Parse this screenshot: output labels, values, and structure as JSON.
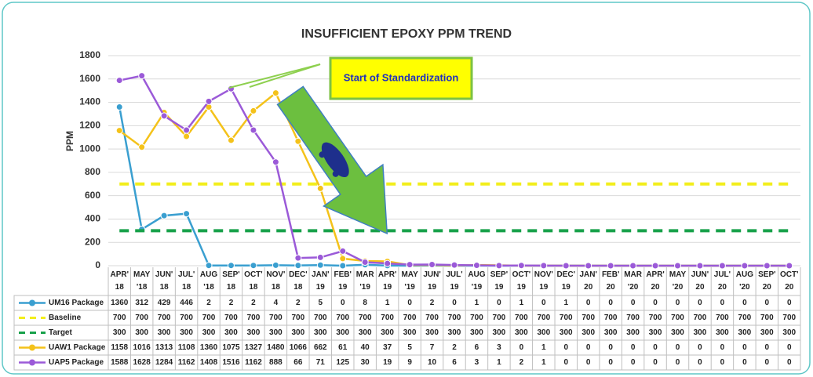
{
  "chart_data": {
    "type": "line",
    "title": "INSUFFICIENT EPOXY PPM TREND",
    "y_label": "PPM",
    "annotation": "Start of Standardization",
    "categories": [
      "APR' 18",
      "MAY '18",
      "JUN' 18",
      "JUL' 18",
      "AUG '18",
      "SEP' 18",
      "OCT' 18",
      "NOV' 18",
      "DEC' 18",
      "JAN' 19",
      "FEB' 19",
      "MAR '19",
      "APR' 19",
      "MAY '19",
      "JUN' 19",
      "JUL' 19",
      "AUG '19",
      "SEP' 19",
      "OCT' 19",
      "NOV' 19",
      "DEC' 19",
      "JAN' 20",
      "FEB' 20",
      "MAR '20",
      "APR' 20",
      "MAY '20",
      "JUN' 20",
      "JUL' 20",
      "AUG '20",
      "SEP' 20",
      "OCT' 20"
    ],
    "ylim": [
      0,
      1800
    ],
    "yticks": [
      0,
      200,
      400,
      600,
      800,
      1000,
      1200,
      1400,
      1600,
      1800
    ],
    "grid": true,
    "series": [
      {
        "name": "UM16 Package",
        "color": "#3a9fd0",
        "marker": true,
        "dashed": false,
        "values": [
          1360,
          312,
          429,
          446,
          2,
          2,
          2,
          4,
          2,
          5,
          0,
          8,
          1,
          0,
          2,
          0,
          1,
          0,
          1,
          0,
          1,
          0,
          0,
          0,
          0,
          0,
          0,
          0,
          0,
          0,
          0
        ]
      },
      {
        "name": "Baseline",
        "color": "#f2ee1c",
        "marker": false,
        "dashed": true,
        "values": [
          700,
          700,
          700,
          700,
          700,
          700,
          700,
          700,
          700,
          700,
          700,
          700,
          700,
          700,
          700,
          700,
          700,
          700,
          700,
          700,
          700,
          700,
          700,
          700,
          700,
          700,
          700,
          700,
          700,
          700,
          700
        ]
      },
      {
        "name": "Target",
        "color": "#17a14a",
        "marker": false,
        "dashed": true,
        "values": [
          300,
          300,
          300,
          300,
          300,
          300,
          300,
          300,
          300,
          300,
          300,
          300,
          300,
          300,
          300,
          300,
          300,
          300,
          300,
          300,
          300,
          300,
          300,
          300,
          300,
          300,
          300,
          300,
          300,
          300,
          300
        ]
      },
      {
        "name": "UAW1 Package",
        "color": "#f4c21a",
        "marker": true,
        "dashed": false,
        "values": [
          1158,
          1016,
          1313,
          1108,
          1360,
          1075,
          1327,
          1480,
          1066,
          662,
          61,
          40,
          37,
          5,
          7,
          2,
          6,
          3,
          0,
          1,
          0,
          0,
          0,
          0,
          0,
          0,
          0,
          0,
          0,
          0,
          0
        ]
      },
      {
        "name": "UAP5 Package",
        "color": "#9b5ad8",
        "marker": true,
        "dashed": false,
        "values": [
          1588,
          1628,
          1284,
          1162,
          1408,
          1516,
          1162,
          888,
          66,
          71,
          125,
          30,
          19,
          9,
          10,
          6,
          3,
          1,
          2,
          1,
          0,
          0,
          0,
          0,
          0,
          0,
          0,
          0,
          0,
          0,
          0
        ]
      }
    ]
  }
}
